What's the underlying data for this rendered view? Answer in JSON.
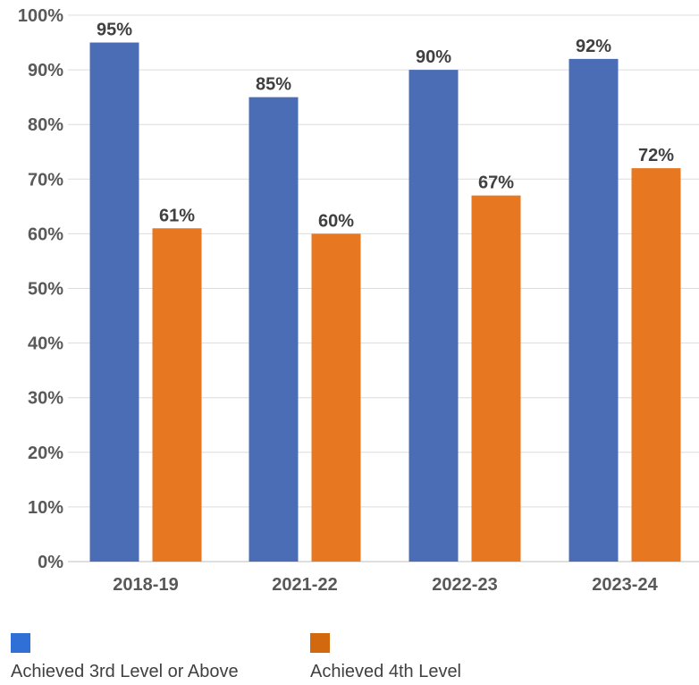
{
  "chart_data": {
    "type": "bar",
    "categories": [
      "2018-19",
      "2021-22",
      "2022-23",
      "2023-24"
    ],
    "series": [
      {
        "name": "Achieved 3rd Level or Above",
        "color": "#4a6db5",
        "values": [
          95,
          85,
          90,
          92
        ]
      },
      {
        "name": "Achieved 4th Level",
        "color": "#e87722",
        "values": [
          61,
          60,
          67,
          72
        ]
      }
    ],
    "data_labels": [
      [
        "95%",
        "85%",
        "90%",
        "92%"
      ],
      [
        "61%",
        "60%",
        "67%",
        "72%"
      ]
    ],
    "y_ticks": [
      {
        "value": 0,
        "label": "0%"
      },
      {
        "value": 10,
        "label": "10%"
      },
      {
        "value": 20,
        "label": "20%"
      },
      {
        "value": 30,
        "label": "30%"
      },
      {
        "value": 40,
        "label": "40%"
      },
      {
        "value": 50,
        "label": "50%"
      },
      {
        "value": 60,
        "label": "60%"
      },
      {
        "value": 70,
        "label": "70%"
      },
      {
        "value": 80,
        "label": "80%"
      },
      {
        "value": 90,
        "label": "90%"
      },
      {
        "value": 100,
        "label": "100%"
      }
    ],
    "ylim": [
      0,
      100
    ],
    "grid": true,
    "legend_position": "bottom-left",
    "legend_swatch_colors": [
      "#2f6fd6",
      "#d2690f"
    ],
    "title": "",
    "xlabel": "",
    "ylabel": ""
  }
}
